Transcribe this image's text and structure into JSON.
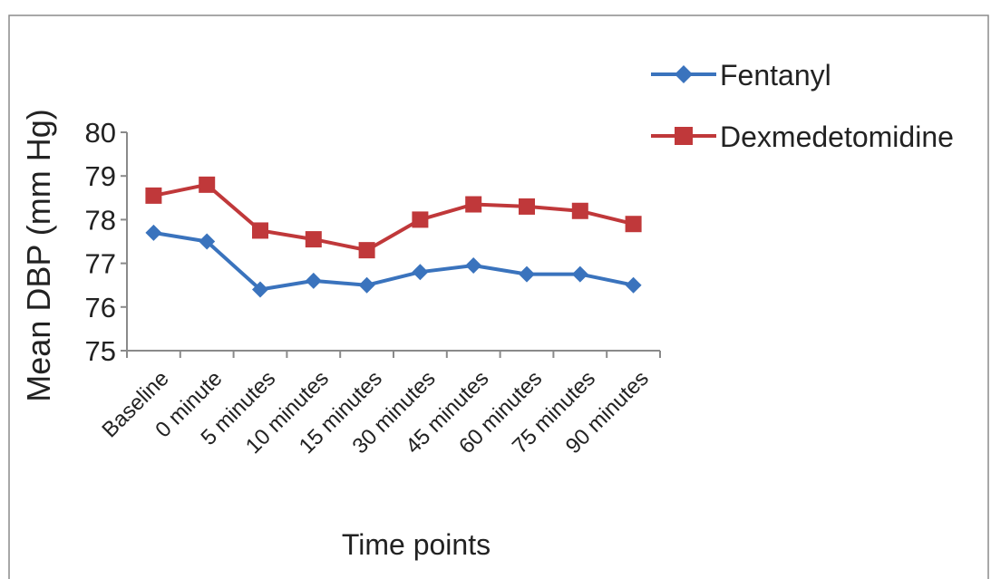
{
  "chart_data": {
    "type": "line",
    "title": "",
    "xlabel": "Time points",
    "ylabel": "Mean DBP (mm Hg)",
    "ylim": [
      75,
      80
    ],
    "yticks": [
      "75",
      "76",
      "77",
      "78",
      "79",
      "80"
    ],
    "categories": [
      "Baseline",
      "0 minute",
      "5 minutes",
      "10 minutes",
      "15 minutes",
      "30 minutes",
      "45 minutes",
      "60 minutes",
      "75 minutes",
      "90 minutes"
    ],
    "series": [
      {
        "name": "Fentanyl",
        "marker": "diamond",
        "color": "#3A73BD",
        "values": [
          77.7,
          77.5,
          76.4,
          76.6,
          76.5,
          76.8,
          76.95,
          76.75,
          76.75,
          76.5
        ]
      },
      {
        "name": "Dexmedetomidine",
        "marker": "square",
        "color": "#C0383A",
        "values": [
          78.55,
          78.8,
          77.75,
          77.55,
          77.3,
          78.0,
          78.35,
          78.3,
          78.2,
          77.9
        ]
      }
    ],
    "grid": false,
    "legend_position": "top-right"
  }
}
